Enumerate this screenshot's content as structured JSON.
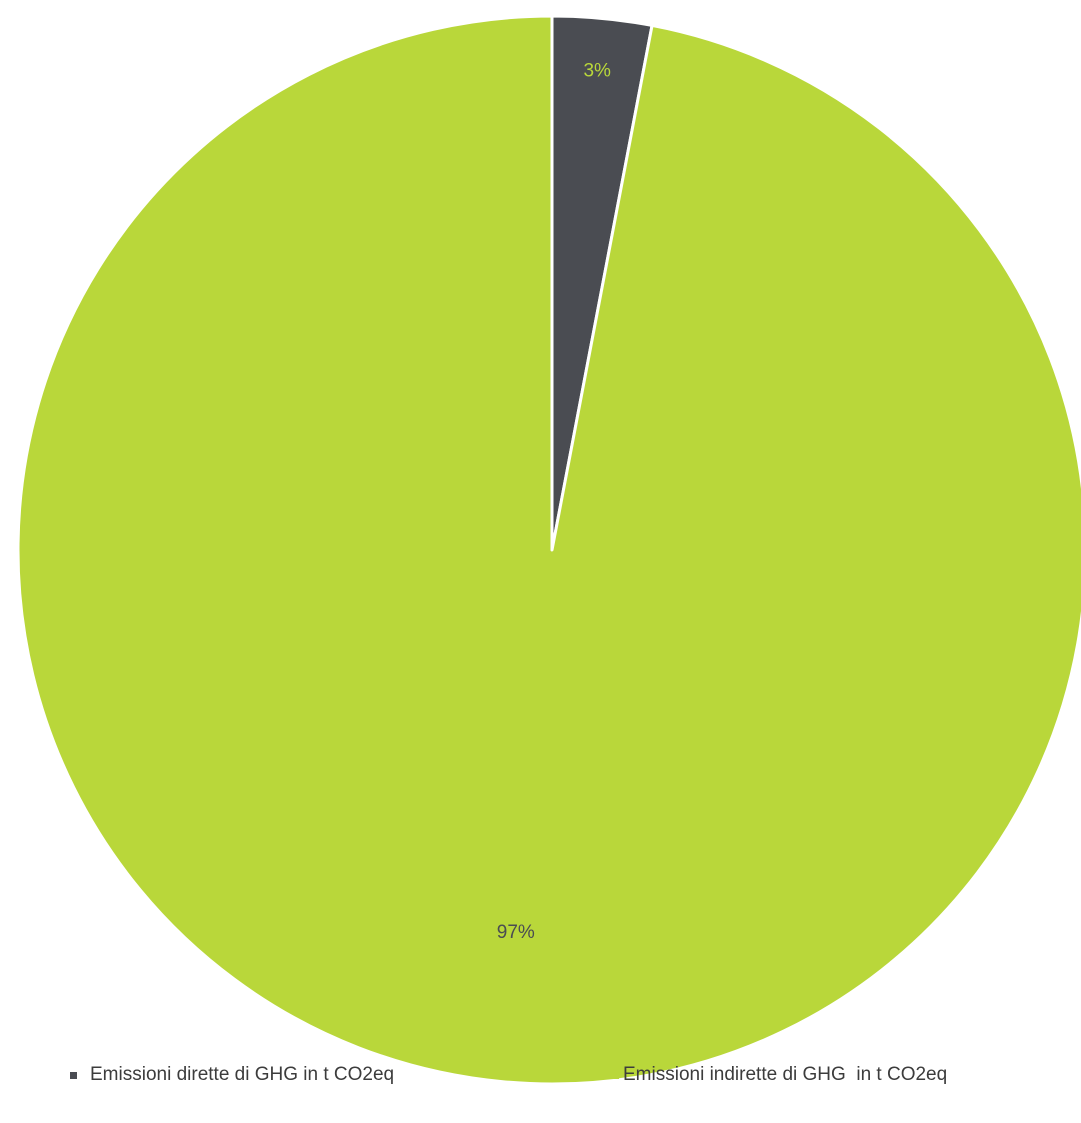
{
  "chart_data": {
    "type": "pie",
    "title": "",
    "slices": [
      {
        "label": "Emissioni dirette di GHG in t CO2eq",
        "value": 3,
        "data_label": "3%",
        "color": "#4a4c52",
        "label_color": "#b9d73a"
      },
      {
        "label": "Emissioni indirette di GHG  in t CO2eq",
        "value": 97,
        "data_label": "97%",
        "color": "#b9d73a",
        "label_color": "#4a4c52"
      }
    ],
    "legend_position": "bottom",
    "start_angle": "12 o'clock",
    "direction": "clockwise",
    "separator_color": "#ffffff"
  }
}
